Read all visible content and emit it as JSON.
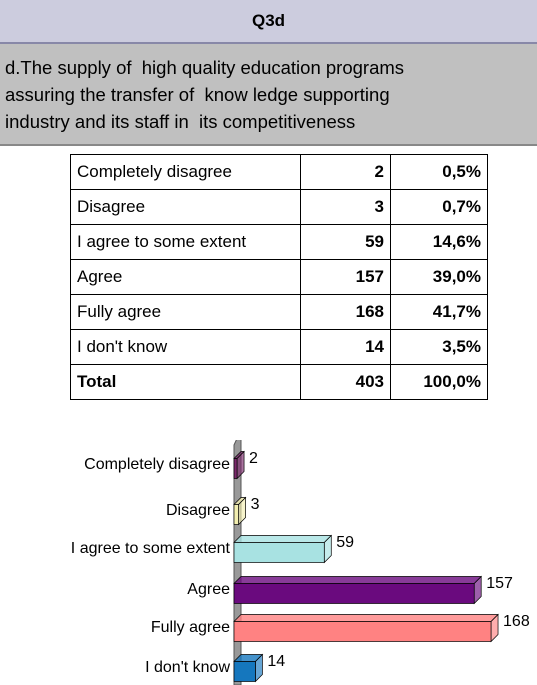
{
  "header": {
    "title": "Q3d"
  },
  "question": [
    "d.The supply of  high quality education programs",
    "assuring the transfer of  know ledge supporting",
    "industry and its staff in  its competitiveness"
  ],
  "table": {
    "rows": [
      [
        "Completely disagree",
        "2",
        "0,5%"
      ],
      [
        "Disagree",
        "3",
        "0,7%"
      ],
      [
        "I agree to some extent",
        "59",
        "14,6%"
      ],
      [
        "Agree",
        "157",
        "39,0%"
      ],
      [
        "Fully agree",
        "168",
        "41,7%"
      ],
      [
        "I don't know",
        "14",
        "3,5%"
      ],
      [
        "Total",
        "403",
        "100,0%"
      ]
    ]
  },
  "chart_data": {
    "type": "bar",
    "orientation": "horizontal",
    "categories": [
      "Completely disagree",
      "Disagree",
      "I agree to some extent",
      "Agree",
      "Fully agree",
      "I don't know"
    ],
    "values": [
      2,
      3,
      59,
      157,
      168,
      14
    ],
    "colors": [
      "#7b2a6b",
      "#f2eeb0",
      "#a8e2e2",
      "#6a0a7e",
      "#ff8282",
      "#1577be"
    ]
  }
}
